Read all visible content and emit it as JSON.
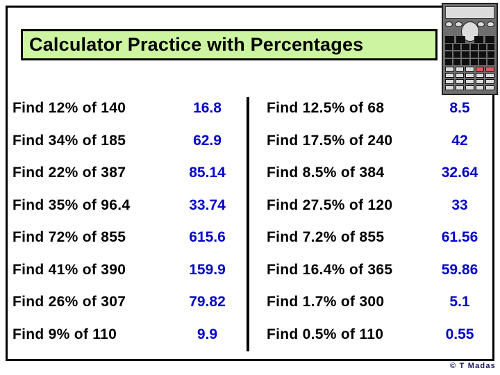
{
  "title": "Calculator Practice with Percentages",
  "footer": {
    "credit": "© T Madas"
  },
  "colors": {
    "answer_blue": "#0202cc",
    "title_background_green": "#cdf5a1",
    "credit_navy": "#14145e",
    "calculator_body_gray": "#6e6e6e",
    "calculator_red_key": "#e05a5a"
  },
  "icons": {
    "calculator": "calculator-icon"
  },
  "problems": {
    "left": [
      {
        "question": "Find 12% of 140",
        "answer": "16.8"
      },
      {
        "question": "Find 34% of 185",
        "answer": "62.9"
      },
      {
        "question": "Find 22% of 387",
        "answer": "85.14"
      },
      {
        "question": "Find 35% of 96.4",
        "answer": "33.74"
      },
      {
        "question": "Find 72% of 855",
        "answer": "615.6"
      },
      {
        "question": "Find 41% of 390",
        "answer": "159.9"
      },
      {
        "question": "Find 26% of 307",
        "answer": "79.82"
      },
      {
        "question": "Find 9% of 110",
        "answer": "9.9"
      }
    ],
    "right": [
      {
        "question": "Find 12.5% of 68",
        "answer": "8.5"
      },
      {
        "question": "Find 17.5% of 240",
        "answer": "42"
      },
      {
        "question": "Find 8.5% of 384",
        "answer": "32.64"
      },
      {
        "question": "Find 27.5% of 120",
        "answer": "33"
      },
      {
        "question": "Find 7.2% of 855",
        "answer": "61.56"
      },
      {
        "question": "Find 16.4% of 365",
        "answer": "59.86"
      },
      {
        "question": "Find 1.7% of 300",
        "answer": "5.1"
      },
      {
        "question": "Find 0.5% of 110",
        "answer": "0.55"
      }
    ]
  }
}
